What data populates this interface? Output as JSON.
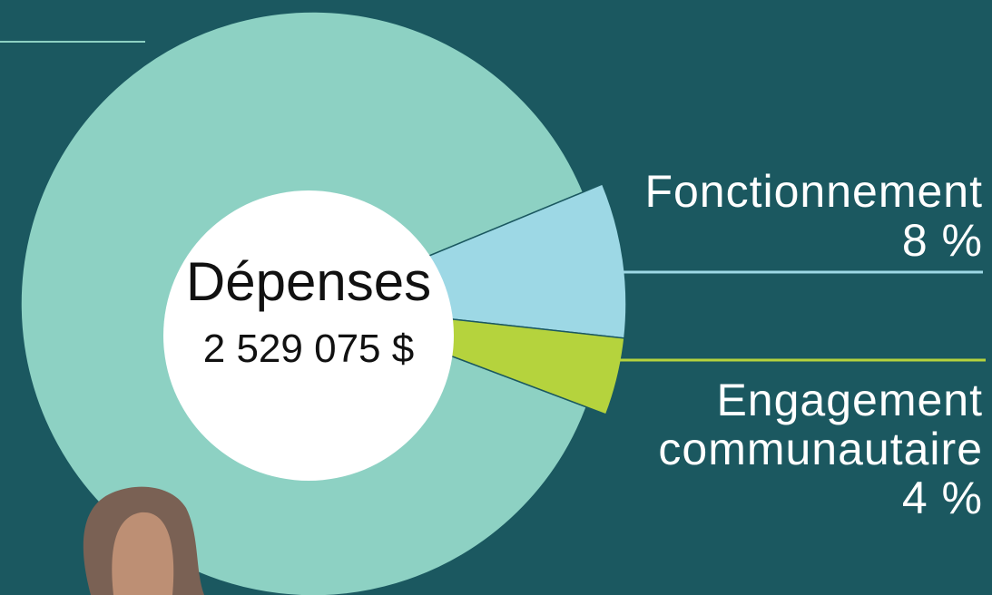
{
  "chart_data": {
    "type": "donut",
    "center_title": "Dépenses",
    "center_value": "2 529 075 $",
    "categories": [
      null,
      "Fonctionnement",
      "Engagement communautaire"
    ],
    "values": [
      88,
      8,
      4
    ],
    "value_labels": [
      null,
      "8 %",
      "4 %"
    ],
    "colors": [
      "#8dd1c3",
      "#9dd8e5",
      "#b5d33d"
    ]
  }
}
